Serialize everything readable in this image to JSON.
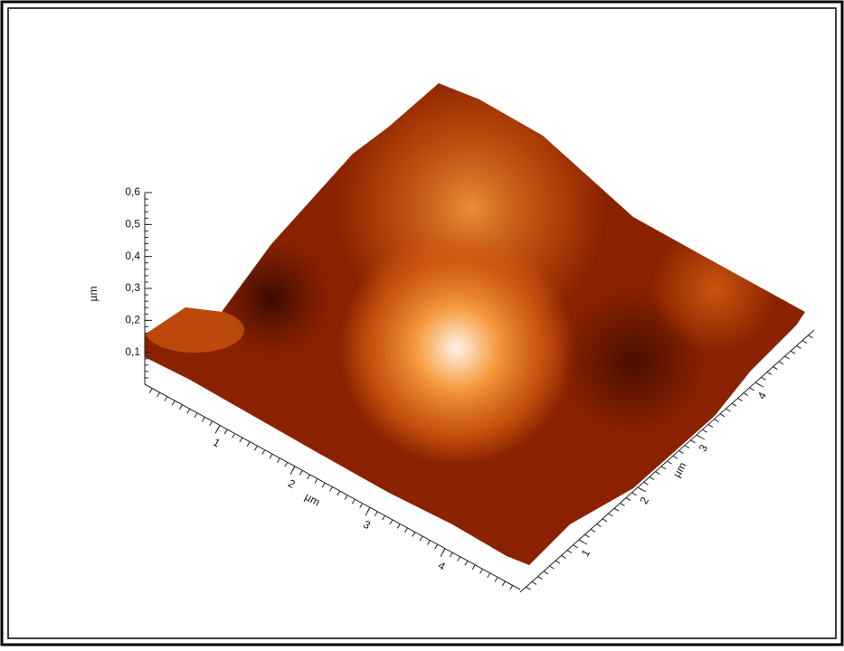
{
  "chart_data": {
    "type": "surface",
    "zlabel": "µm",
    "xlabel": "µm",
    "ylabel": "µm",
    "zlim": [
      0,
      0.6
    ],
    "zticks": [
      {
        "value": 0.1,
        "label": "0,1"
      },
      {
        "value": 0.2,
        "label": "0,2"
      },
      {
        "value": 0.3,
        "label": "0,3"
      },
      {
        "value": 0.4,
        "label": "0,4"
      },
      {
        "value": 0.5,
        "label": "0,5"
      },
      {
        "value": 0.6,
        "label": "0,6"
      }
    ],
    "xlim": [
      0,
      5
    ],
    "xticks": [
      1,
      2,
      3,
      4
    ],
    "ylim": [
      0,
      5
    ],
    "yticks": [
      1,
      2,
      3,
      4
    ],
    "colormap": [
      "#3a0a00",
      "#8a2200",
      "#d25a10",
      "#f59a3c",
      "#fff4e8"
    ]
  }
}
